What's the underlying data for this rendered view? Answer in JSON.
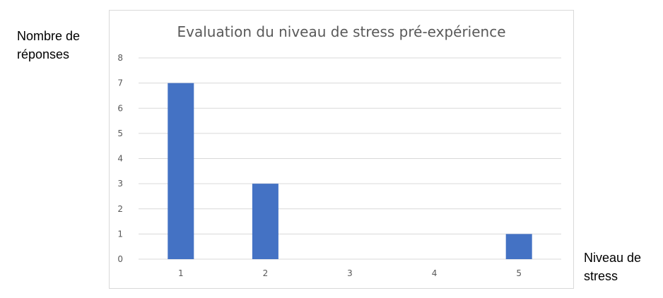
{
  "y_axis_label": "Nombre de réponses",
  "x_axis_label": "Niveau de stress",
  "chart_data": {
    "type": "bar",
    "title": "Evaluation du niveau de stress pré-expérience",
    "categories": [
      "1",
      "2",
      "3",
      "4",
      "5"
    ],
    "values": [
      7,
      3,
      0,
      0,
      1
    ],
    "ylim": [
      0,
      8
    ],
    "yticks": [
      "0",
      "1",
      "2",
      "3",
      "4",
      "5",
      "6",
      "7",
      "8"
    ],
    "grid": true,
    "bar_color": "#4472C4",
    "gridline_color": "#d9d9d9"
  }
}
